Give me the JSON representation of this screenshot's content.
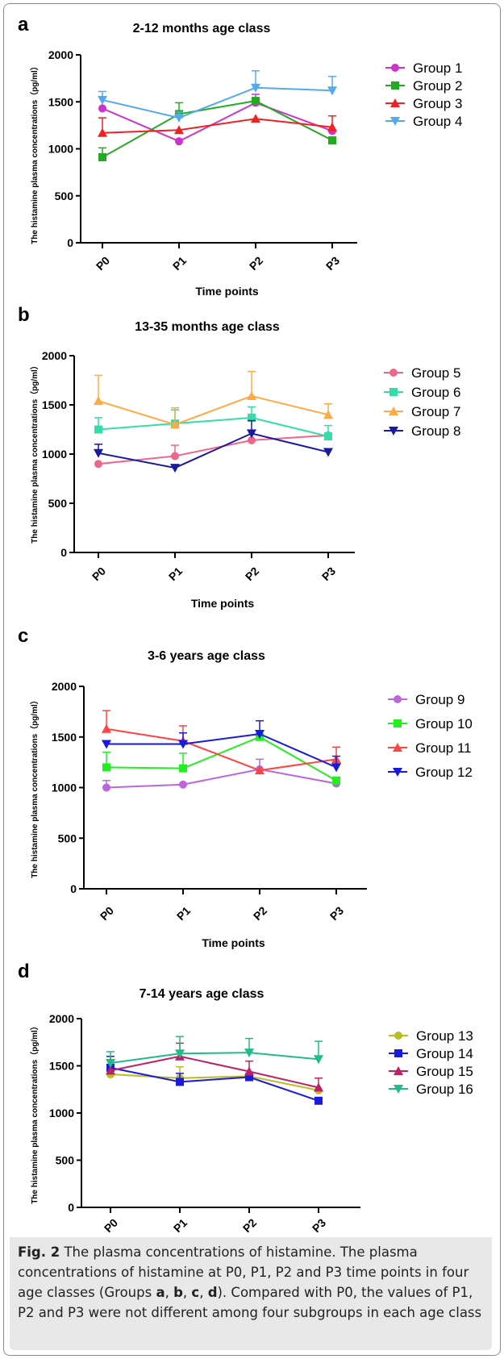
{
  "chart_data": [
    {
      "type": "line",
      "letter": "a",
      "title": "2-12 months age class",
      "xlabel": "Time points",
      "ylabel": "The histamine plasma concentrations（pg/ml）",
      "categories": [
        "P0",
        "P1",
        "P2",
        "P3"
      ],
      "ylim": [
        0,
        2000
      ],
      "yticks": [
        0,
        500,
        1000,
        1500,
        2000
      ],
      "series": [
        {
          "name": "Group 1",
          "color": "#cc33cc",
          "marker": "circle",
          "values": [
            1430,
            1080,
            1490,
            1190
          ],
          "errors": [
            0,
            0,
            90,
            0
          ]
        },
        {
          "name": "Group 2",
          "color": "#22aa22",
          "marker": "square",
          "values": [
            910,
            1370,
            1510,
            1090
          ],
          "errors": [
            100,
            120,
            0,
            0
          ]
        },
        {
          "name": "Group 3",
          "color": "#ee2222",
          "marker": "triangle-up",
          "values": [
            1170,
            1200,
            1320,
            1230
          ],
          "errors": [
            160,
            0,
            0,
            120
          ]
        },
        {
          "name": "Group 4",
          "color": "#55aaee",
          "marker": "triangle-down",
          "values": [
            1520,
            1330,
            1650,
            1620
          ],
          "errors": [
            90,
            60,
            180,
            150
          ]
        }
      ]
    },
    {
      "type": "line",
      "letter": "b",
      "title": "13-35 months age class",
      "xlabel": "Time points",
      "ylabel": "The histamine plasma concentrations（pg/ml）",
      "categories": [
        "P0",
        "P1",
        "P2",
        "P3"
      ],
      "ylim": [
        0,
        2000
      ],
      "yticks": [
        0,
        500,
        1000,
        1500,
        2000
      ],
      "series": [
        {
          "name": "Group 5",
          "color": "#ee6688",
          "marker": "circle",
          "values": [
            900,
            980,
            1140,
            1190
          ],
          "errors": [
            0,
            110,
            0,
            0
          ]
        },
        {
          "name": "Group 6",
          "color": "#33ddaa",
          "marker": "square",
          "values": [
            1250,
            1310,
            1370,
            1180
          ],
          "errors": [
            120,
            140,
            110,
            110
          ]
        },
        {
          "name": "Group 7",
          "color": "#ffaa44",
          "marker": "triangle-up",
          "values": [
            1540,
            1300,
            1590,
            1400
          ],
          "errors": [
            260,
            170,
            250,
            110
          ]
        },
        {
          "name": "Group 8",
          "color": "#1a1aa0",
          "marker": "triangle-down",
          "values": [
            1010,
            860,
            1210,
            1020
          ],
          "errors": [
            90,
            0,
            130,
            0
          ]
        }
      ]
    },
    {
      "type": "line",
      "letter": "c",
      "title": "3-6 years age class",
      "xlabel": "Time points",
      "ylabel": "The histamine plasma concentrations（pg/ml）",
      "categories": [
        "P0",
        "P1",
        "P2",
        "P3"
      ],
      "ylim": [
        0,
        2000
      ],
      "yticks": [
        0,
        500,
        1000,
        1500,
        2000
      ],
      "series": [
        {
          "name": "Group 9",
          "color": "#bb66dd",
          "marker": "circle",
          "values": [
            1000,
            1030,
            1180,
            1040
          ],
          "errors": [
            70,
            0,
            100,
            0
          ]
        },
        {
          "name": "Group 10",
          "color": "#22ee22",
          "marker": "square",
          "values": [
            1200,
            1190,
            1500,
            1070
          ],
          "errors": [
            150,
            150,
            0,
            0
          ]
        },
        {
          "name": "Group 11",
          "color": "#ff4444",
          "marker": "triangle-up",
          "values": [
            1580,
            1460,
            1170,
            1280
          ],
          "errors": [
            180,
            150,
            0,
            120
          ]
        },
        {
          "name": "Group 12",
          "color": "#1a1add",
          "marker": "triangle-down",
          "values": [
            1430,
            1430,
            1530,
            1200
          ],
          "errors": [
            0,
            110,
            130,
            110
          ]
        }
      ]
    },
    {
      "type": "line",
      "letter": "d",
      "title": "7-14 years age class",
      "xlabel": "Time points",
      "ylabel": "The histamine plasma concentrations（pg/ml）",
      "categories": [
        "P0",
        "P1",
        "P2",
        "P3"
      ],
      "ylim": [
        0,
        2000
      ],
      "yticks": [
        0,
        500,
        1000,
        1500,
        2000
      ],
      "series": [
        {
          "name": "Group 13",
          "color": "#bbbb22",
          "marker": "circle",
          "values": [
            1410,
            1370,
            1390,
            1240
          ],
          "errors": [
            0,
            120,
            0,
            0
          ]
        },
        {
          "name": "Group 14",
          "color": "#1a1add",
          "marker": "square",
          "values": [
            1480,
            1330,
            1380,
            1130
          ],
          "errors": [
            120,
            90,
            0,
            0
          ]
        },
        {
          "name": "Group 15",
          "color": "#bb2266",
          "marker": "triangle-up",
          "values": [
            1450,
            1600,
            1440,
            1270
          ],
          "errors": [
            0,
            140,
            110,
            100
          ]
        },
        {
          "name": "Group 16",
          "color": "#22bb88",
          "marker": "triangle-down",
          "values": [
            1530,
            1630,
            1640,
            1570
          ],
          "errors": [
            120,
            180,
            150,
            190
          ]
        }
      ]
    }
  ],
  "caption": {
    "label": "Fig. 2",
    "text_1": " The plasma concentrations of histamine. The plasma concentrations of histamine at P0, P1, P2 and P3 time points in four age classes (Groups ",
    "g_a": "a",
    "sep_1": ", ",
    "g_b": "b",
    "sep_2": ", ",
    "g_c": "c",
    "sep_3": ", ",
    "g_d": "d",
    "text_2": "). Compared with P0, the values of P1, P2 and P3 were not different among four subgroups in each age class"
  }
}
